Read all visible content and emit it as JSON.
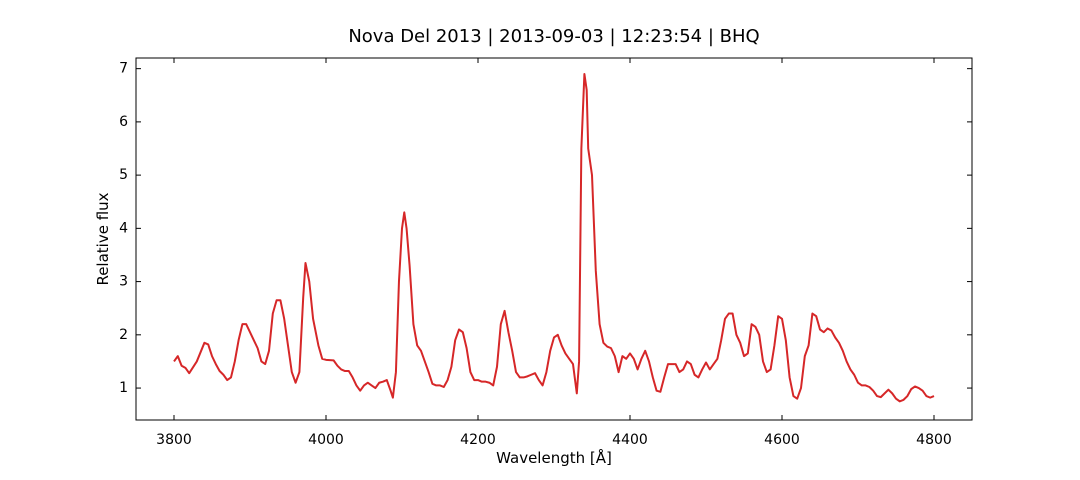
{
  "chart_data": {
    "type": "line",
    "title": "Nova Del 2013 | 2013-09-03 | 12:23:54 | BHQ",
    "xlabel": "Wavelength [Å]",
    "ylabel": "Relative flux",
    "xlim": [
      3750,
      4850
    ],
    "ylim": [
      0.4,
      7.2
    ],
    "xticks": [
      3800,
      4000,
      4200,
      4400,
      4600,
      4800
    ],
    "yticks": [
      1,
      2,
      3,
      4,
      5,
      6,
      7
    ],
    "grid": false,
    "series": [
      {
        "name": "Relative flux",
        "color": "#d62728",
        "x": [
          3800,
          3805,
          3810,
          3815,
          3820,
          3830,
          3840,
          3845,
          3850,
          3855,
          3860,
          3865,
          3870,
          3875,
          3880,
          3885,
          3890,
          3895,
          3900,
          3905,
          3910,
          3915,
          3920,
          3925,
          3930,
          3935,
          3940,
          3945,
          3950,
          3955,
          3960,
          3965,
          3970,
          3973,
          3978,
          3983,
          3990,
          3995,
          4000,
          4010,
          4015,
          4020,
          4025,
          4030,
          4035,
          4040,
          4045,
          4050,
          4055,
          4060,
          4065,
          4070,
          4075,
          4080,
          4085,
          4088,
          4092,
          4096,
          4100,
          4103,
          4106,
          4110,
          4115,
          4120,
          4125,
          4130,
          4135,
          4140,
          4145,
          4150,
          4155,
          4160,
          4165,
          4170,
          4175,
          4180,
          4185,
          4190,
          4195,
          4200,
          4205,
          4210,
          4215,
          4220,
          4225,
          4230,
          4235,
          4240,
          4245,
          4250,
          4255,
          4260,
          4265,
          4270,
          4275,
          4280,
          4285,
          4290,
          4295,
          4300,
          4305,
          4310,
          4315,
          4320,
          4325,
          4330,
          4333,
          4336,
          4340,
          4343,
          4345,
          4350,
          4355,
          4360,
          4365,
          4370,
          4375,
          4380,
          4385,
          4390,
          4395,
          4400,
          4405,
          4410,
          4415,
          4420,
          4425,
          4430,
          4435,
          4440,
          4445,
          4450,
          4455,
          4460,
          4465,
          4470,
          4475,
          4480,
          4485,
          4490,
          4495,
          4500,
          4505,
          4510,
          4515,
          4520,
          4525,
          4530,
          4535,
          4540,
          4545,
          4550,
          4555,
          4560,
          4565,
          4570,
          4575,
          4580,
          4585,
          4590,
          4595,
          4600,
          4605,
          4610,
          4615,
          4620,
          4625,
          4630,
          4635,
          4640,
          4645,
          4650,
          4655,
          4660,
          4665,
          4670,
          4675,
          4680,
          4685,
          4690,
          4695,
          4700,
          4705,
          4710,
          4715,
          4720,
          4725,
          4730,
          4735,
          4740,
          4745,
          4750,
          4755,
          4760,
          4765,
          4770,
          4775,
          4780,
          4785,
          4790,
          4795,
          4800
        ],
        "values": [
          1.5,
          1.6,
          1.42,
          1.38,
          1.28,
          1.5,
          1.85,
          1.82,
          1.6,
          1.45,
          1.32,
          1.25,
          1.15,
          1.2,
          1.5,
          1.9,
          2.2,
          2.2,
          2.05,
          1.9,
          1.75,
          1.5,
          1.45,
          1.7,
          2.4,
          2.65,
          2.65,
          2.3,
          1.8,
          1.3,
          1.1,
          1.3,
          2.7,
          3.35,
          3.0,
          2.3,
          1.8,
          1.55,
          1.53,
          1.52,
          1.42,
          1.35,
          1.32,
          1.32,
          1.2,
          1.05,
          0.95,
          1.05,
          1.1,
          1.05,
          1.0,
          1.1,
          1.12,
          1.15,
          0.95,
          0.82,
          1.3,
          3.0,
          4.0,
          4.3,
          4.0,
          3.3,
          2.2,
          1.8,
          1.7,
          1.5,
          1.3,
          1.08,
          1.05,
          1.05,
          1.02,
          1.15,
          1.4,
          1.9,
          2.1,
          2.05,
          1.75,
          1.3,
          1.15,
          1.15,
          1.12,
          1.12,
          1.1,
          1.05,
          1.4,
          2.2,
          2.45,
          2.05,
          1.7,
          1.3,
          1.2,
          1.2,
          1.22,
          1.25,
          1.28,
          1.15,
          1.05,
          1.3,
          1.7,
          1.95,
          2.0,
          1.8,
          1.65,
          1.55,
          1.45,
          0.9,
          1.5,
          5.5,
          6.9,
          6.6,
          5.5,
          5.0,
          3.2,
          2.2,
          1.85,
          1.78,
          1.75,
          1.6,
          1.3,
          1.6,
          1.55,
          1.65,
          1.55,
          1.35,
          1.55,
          1.7,
          1.5,
          1.2,
          0.95,
          0.93,
          1.2,
          1.45,
          1.45,
          1.45,
          1.3,
          1.35,
          1.5,
          1.45,
          1.25,
          1.2,
          1.35,
          1.48,
          1.35,
          1.45,
          1.55,
          1.9,
          2.3,
          2.4,
          2.4,
          2.0,
          1.85,
          1.6,
          1.65,
          2.2,
          2.15,
          2.0,
          1.5,
          1.3,
          1.35,
          1.8,
          2.35,
          2.3,
          1.9,
          1.2,
          0.85,
          0.8,
          1.0,
          1.6,
          1.8,
          2.4,
          2.35,
          2.1,
          2.05,
          2.12,
          2.08,
          1.95,
          1.85,
          1.7,
          1.5,
          1.35,
          1.25,
          1.1,
          1.05,
          1.05,
          1.02,
          0.95,
          0.85,
          0.83,
          0.9,
          0.97,
          0.9,
          0.8,
          0.75,
          0.78,
          0.85,
          0.98,
          1.03,
          1.0,
          0.95,
          0.85,
          0.82,
          0.85
        ]
      }
    ]
  }
}
